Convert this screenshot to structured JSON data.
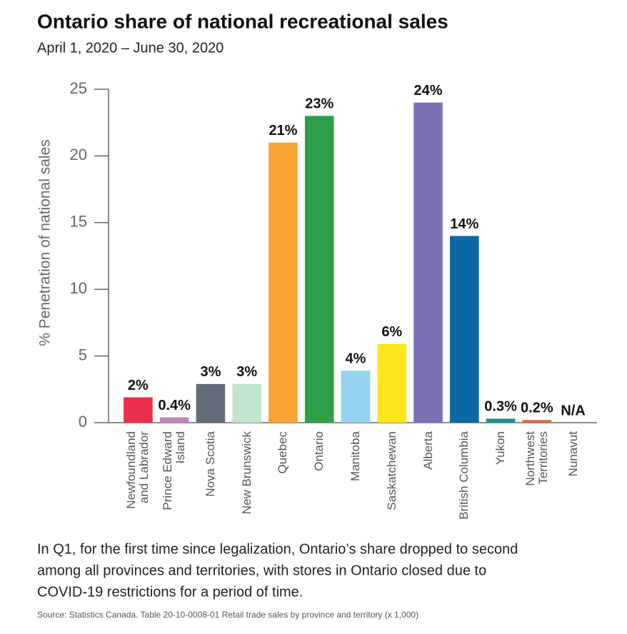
{
  "chart_data": {
    "type": "bar",
    "title": "Ontario share of national recreational sales",
    "subtitle": "April 1, 2020 – June 30, 2020",
    "ylabel": "% Penetration of national sales",
    "categories": [
      "Newfoundland\nand Labrador",
      "Prince Edward\nIsland",
      "Nova Scotia",
      "New Brunswick",
      "Quebec",
      "Ontario",
      "Manitoba",
      "Saskatchewan",
      "Alberta",
      "British Columbia",
      "Yukon",
      "Northwest\nTerritories",
      "Nunavut"
    ],
    "values": [
      1.9,
      0.4,
      2.9,
      2.9,
      21,
      23,
      3.9,
      5.9,
      24,
      14,
      0.3,
      0.2,
      null
    ],
    "value_labels": [
      "2%",
      "0.4%",
      "3%",
      "3%",
      "21%",
      "23%",
      "4%",
      "6%",
      "24%",
      "14%",
      "0.3%",
      "0.2%",
      "N/A"
    ],
    "colors": [
      "#ea2e4b",
      "#c57fb7",
      "#646e79",
      "#c1e4cf",
      "#f7a233",
      "#2e9e48",
      "#93d3ee",
      "#fde51b",
      "#7a72b5",
      "#0b6aa3",
      "#17938f",
      "#e1693f",
      "#888888"
    ],
    "ylim": [
      0,
      25
    ],
    "yticks": [
      0,
      5,
      10,
      15,
      20,
      25
    ],
    "caption": [
      "In Q1, for the first time since legalization, Ontario’s share dropped to second",
      "among all provinces and territories, with stores in Ontario closed due to",
      "COVID-19 restrictions for a period of time."
    ],
    "source": "Source: Statistics Canada. Table 20-10-0008-01 Retail trade sales by province and territory (x 1,000)"
  }
}
